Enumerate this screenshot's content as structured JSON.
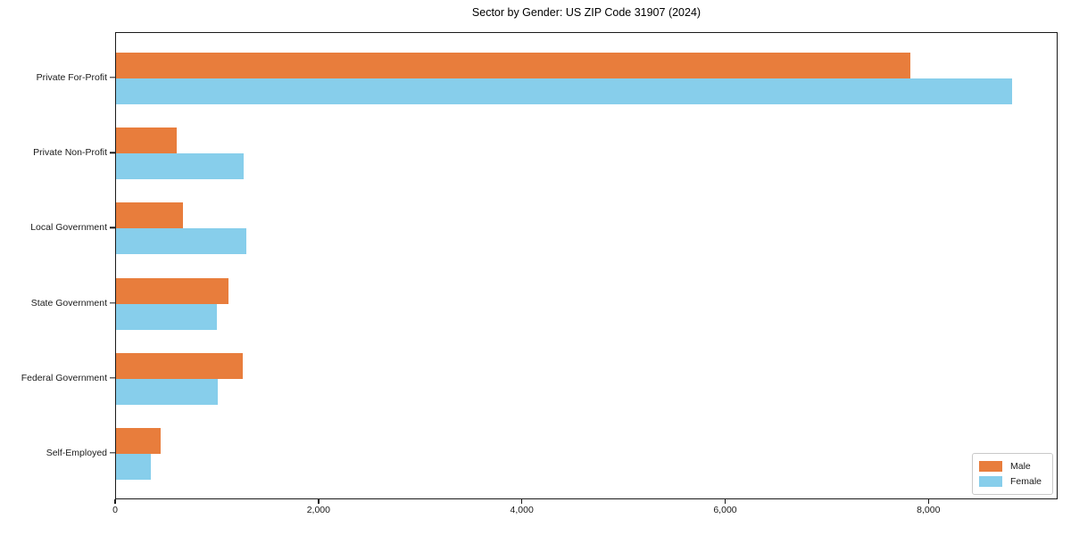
{
  "chart_data": {
    "type": "bar",
    "orientation": "horizontal",
    "title": "Sector by Gender: US ZIP Code 31907 (2024)",
    "categories": [
      "Private For-Profit",
      "Private Non-Profit",
      "Local Government",
      "State Government",
      "Federal Government",
      "Self-Employed"
    ],
    "series": [
      {
        "name": "Male",
        "color": "#E87D3C",
        "values": [
          7830,
          600,
          660,
          1110,
          1250,
          440
        ]
      },
      {
        "name": "Female",
        "color": "#87CEEB",
        "values": [
          8830,
          1260,
          1280,
          990,
          1000,
          340
        ]
      }
    ],
    "xlabel": "",
    "ylabel": "",
    "xlim": [
      0,
      9270
    ],
    "x_ticks": [
      {
        "value": 0,
        "label": "0"
      },
      {
        "value": 2000,
        "label": "2,000"
      },
      {
        "value": 4000,
        "label": "4,000"
      },
      {
        "value": 6000,
        "label": "6,000"
      },
      {
        "value": 8000,
        "label": "8,000"
      }
    ],
    "grid": false,
    "legend_position": "lower right",
    "background": "#ffffff",
    "spine_color": "#1a1a1a"
  }
}
